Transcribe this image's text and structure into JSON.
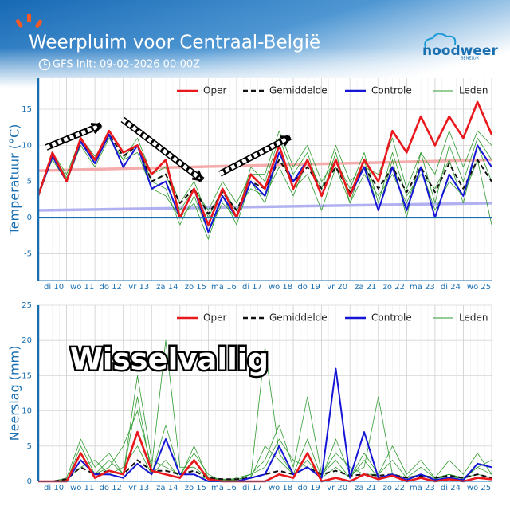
{
  "header": {
    "title": "Weerpluim voor  Centraal-België",
    "subtitle": "GFS Init: 09-02-2026 00:00Z",
    "logo": "noodweer",
    "logo_sub": "BENELUX"
  },
  "chart_data": [
    {
      "type": "line",
      "ylabel": "Temperatuur (°C)",
      "x": [
        0,
        12,
        24,
        36,
        48,
        60,
        72,
        84,
        96,
        108,
        120,
        132,
        144,
        156,
        168,
        180,
        192,
        204,
        216,
        228,
        240,
        252,
        264,
        276,
        288,
        300,
        312,
        324,
        336,
        348,
        360,
        372,
        384
      ],
      "xlim": [
        0,
        384
      ],
      "xticks": [
        {
          "value": 24,
          "label": "di 10"
        },
        {
          "value": 48,
          "label": "wo 11"
        },
        {
          "value": 72,
          "label": "do 12"
        },
        {
          "value": 96,
          "label": "vr 13"
        },
        {
          "value": 120,
          "label": "za 14"
        },
        {
          "value": 144,
          "label": "zo 15"
        },
        {
          "value": 168,
          "label": "ma 16"
        },
        {
          "value": 192,
          "label": "di 17"
        },
        {
          "value": 216,
          "label": "wo 18"
        },
        {
          "value": 240,
          "label": "do 19"
        },
        {
          "value": 264,
          "label": "vr 20"
        },
        {
          "value": 288,
          "label": "za 21"
        },
        {
          "value": 312,
          "label": "zo 22"
        },
        {
          "value": 336,
          "label": "ma 23"
        },
        {
          "value": 360,
          "label": "di 24"
        },
        {
          "value": 384,
          "label": "wo 25"
        }
      ],
      "ylim": [
        -8.7,
        19.3
      ],
      "yticks": [
        -5,
        0,
        5,
        10,
        15
      ],
      "grid": true,
      "climate_lines": [
        {
          "color": "#f4a3a3",
          "x": [
            0,
            384
          ],
          "values": [
            6.5,
            8
          ]
        },
        {
          "color": "#a9a9f0",
          "x": [
            0,
            384
          ],
          "values": [
            1,
            2
          ]
        }
      ],
      "series": [
        {
          "name": "Oper",
          "color": "#e8181c",
          "values": [
            3,
            9,
            5,
            11,
            8,
            12,
            9,
            10,
            6,
            8,
            0,
            4,
            -1,
            4,
            0,
            6,
            4,
            10,
            4,
            8,
            3,
            8,
            3,
            8,
            5,
            12,
            9,
            14,
            10,
            14,
            11,
            16,
            11.5
          ]
        },
        {
          "name": "Gemiddelde",
          "color": "#111111",
          "dash": true,
          "values": [
            3,
            8.5,
            5,
            10.5,
            8,
            11.5,
            8.5,
            10,
            5,
            6,
            2,
            4,
            0.5,
            3.5,
            1,
            5,
            4,
            8,
            5,
            7,
            4,
            7,
            3.5,
            7,
            4,
            7,
            3.5,
            7,
            3.5,
            7.5,
            4,
            8,
            5
          ]
        },
        {
          "name": "Controle",
          "color": "#1515d6",
          "values": [
            3,
            8.5,
            5,
            10.5,
            7.5,
            11.5,
            7,
            10,
            4,
            5,
            0,
            4,
            -2,
            3,
            0,
            5,
            3,
            9,
            5,
            8,
            3,
            8,
            3,
            7,
            1,
            7,
            1,
            7,
            0,
            6,
            3,
            10,
            7
          ]
        },
        {
          "name": "Leden",
          "color": "#2e9a2e",
          "members": [
            [
              3,
              9,
              6,
              11,
              8,
              12,
              9,
              10,
              5,
              4,
              -1,
              3,
              -2,
              2,
              0,
              7,
              5,
              11,
              6,
              9,
              3,
              9,
              2,
              8,
              1,
              8,
              0,
              9,
              2,
              10,
              5,
              11,
              8
            ],
            [
              3.5,
              8,
              5,
              10,
              7,
              11,
              8,
              11,
              6,
              7,
              2,
              5,
              0,
              4,
              1,
              4,
              3,
              7,
              3,
              8,
              4,
              10,
              5,
              7,
              6,
              11,
              4,
              9,
              6,
              12,
              7,
              12,
              10
            ],
            [
              3,
              9,
              5.5,
              11,
              8.5,
              11,
              8,
              9,
              4,
              3,
              0,
              2,
              -3,
              3,
              -1,
              5,
              2,
              9,
              4,
              6,
              1,
              7,
              2,
              6,
              3,
              6,
              2,
              7,
              1,
              5,
              3,
              8,
              -1
            ],
            [
              3,
              8.5,
              5,
              10.5,
              7.5,
              12,
              9,
              10,
              5,
              6,
              1,
              4,
              1,
              5,
              2,
              6,
              6,
              12,
              7,
              10,
              5,
              8,
              4,
              9,
              2,
              9,
              3,
              6,
              4,
              8,
              2,
              10,
              5
            ]
          ]
        }
      ]
    },
    {
      "type": "line",
      "ylabel": "Neerslag (mm)",
      "annotation": "Wisselvallig",
      "x": [
        0,
        12,
        24,
        36,
        48,
        60,
        72,
        84,
        96,
        108,
        120,
        132,
        144,
        156,
        168,
        180,
        192,
        204,
        216,
        228,
        240,
        252,
        264,
        276,
        288,
        300,
        312,
        324,
        336,
        348,
        360,
        372,
        384
      ],
      "xlim": [
        0,
        384
      ],
      "xticks": [
        {
          "value": 24,
          "label": "di 10"
        },
        {
          "value": 48,
          "label": "wo 11"
        },
        {
          "value": 72,
          "label": "do 12"
        },
        {
          "value": 96,
          "label": "vr 13"
        },
        {
          "value": 120,
          "label": "za 14"
        },
        {
          "value": 144,
          "label": "zo 15"
        },
        {
          "value": 168,
          "label": "ma 16"
        },
        {
          "value": 192,
          "label": "di 17"
        },
        {
          "value": 216,
          "label": "wo 18"
        },
        {
          "value": 240,
          "label": "do 19"
        },
        {
          "value": 264,
          "label": "vr 20"
        },
        {
          "value": 288,
          "label": "za 21"
        },
        {
          "value": 312,
          "label": "zo 22"
        },
        {
          "value": 336,
          "label": "ma 23"
        },
        {
          "value": 360,
          "label": "di 24"
        },
        {
          "value": 384,
          "label": "wo 25"
        }
      ],
      "ylim": [
        0,
        25
      ],
      "yticks": [
        0,
        5,
        10,
        15,
        20,
        25
      ],
      "grid": true,
      "series": [
        {
          "name": "Oper",
          "color": "#e8181c",
          "values": [
            0,
            0,
            0,
            4,
            0.5,
            1.5,
            1,
            7,
            1.5,
            1,
            0.5,
            3,
            0.3,
            0,
            0,
            0,
            0,
            1,
            0.5,
            4,
            0,
            0.5,
            0,
            1,
            0.3,
            0.8,
            0,
            0.5,
            0,
            0.3,
            0,
            0.5,
            0.3
          ]
        },
        {
          "name": "Gemiddelde",
          "color": "#111111",
          "dash": true,
          "values": [
            0,
            0,
            0.3,
            2,
            1,
            1.5,
            1,
            3,
            1.5,
            1.5,
            1,
            1.5,
            0.5,
            0.3,
            0.3,
            0.5,
            1,
            1.5,
            1,
            2,
            1,
            1.5,
            0.8,
            1,
            0.8,
            1,
            0.5,
            0.8,
            0.5,
            0.8,
            0.5,
            1,
            0.5
          ]
        },
        {
          "name": "Controle",
          "color": "#1515d6",
          "values": [
            0,
            0,
            0,
            3,
            1,
            1,
            0.5,
            2.5,
            1,
            6,
            1,
            1,
            0,
            0,
            0,
            0.5,
            1,
            5,
            1,
            2,
            0.5,
            16,
            0.5,
            7,
            0.5,
            1,
            0.2,
            1,
            0.2,
            0.5,
            0.2,
            2.5,
            2
          ]
        },
        {
          "name": "Leden",
          "color": "#2e9a2e",
          "members": [
            [
              0,
              0,
              0.5,
              6,
              2,
              4,
              1,
              15,
              3,
              2,
              1,
              4,
              1,
              0,
              0.5,
              1,
              3,
              8,
              2,
              12,
              1,
              3,
              0.5,
              4,
              1,
              3,
              0.5,
              2,
              0.5,
              1,
              0.5,
              2,
              1
            ],
            [
              0,
              0,
              0.2,
              3,
              1,
              2,
              5,
              10,
              2,
              20,
              2,
              2,
              0.5,
              0.3,
              0.3,
              0.5,
              19,
              4,
              1,
              3,
              0.5,
              6,
              1,
              2,
              12,
              1,
              0.5,
              1,
              0.5,
              0.5,
              0.5,
              1,
              0.5
            ],
            [
              0,
              0,
              0.3,
              2,
              3,
              1,
              2,
              5,
              1,
              8,
              1,
              1,
              0.3,
              0.2,
              0.2,
              1,
              2,
              6,
              3,
              2,
              1,
              4,
              2,
              1,
              1,
              5,
              1,
              3,
              0.5,
              3,
              1,
              4,
              1
            ],
            [
              0,
              0,
              0.1,
              5,
              1,
              3,
              1,
              12,
              1,
              3,
              0.5,
              5,
              0.5,
              0.2,
              0.1,
              0.5,
              5,
              3,
              1,
              6,
              0.5,
              2,
              0.5,
              3,
              0.5,
              1,
              0.5,
              1,
              0.3,
              1,
              0.3,
              2,
              3
            ]
          ]
        }
      ]
    }
  ]
}
